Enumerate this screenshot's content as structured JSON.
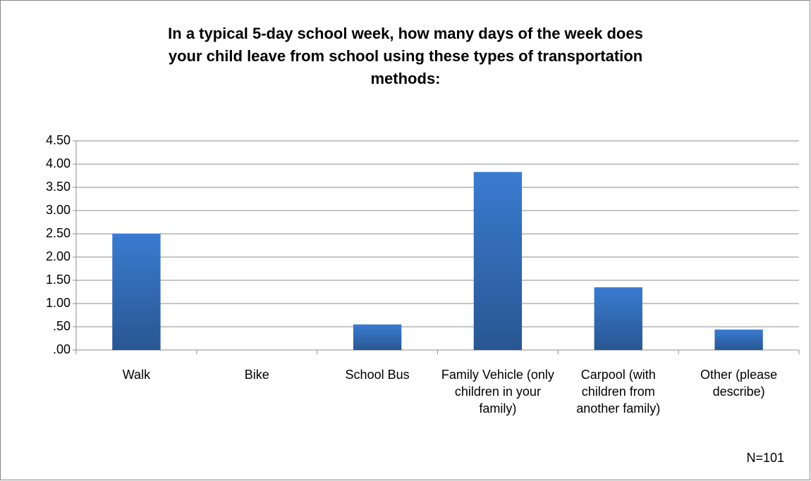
{
  "chart_data": {
    "type": "bar",
    "title": "In a typical 5-day school week, how many days of the week does your child leave from school using these types of transportation methods:",
    "categories": [
      "Walk",
      "Bike",
      "School Bus",
      "Family Vehicle (only children in your family)",
      "Carpool (with children from another family)",
      "Other (please describe)"
    ],
    "values": [
      2.5,
      0,
      0.55,
      3.83,
      1.35,
      0.44
    ],
    "color": "#3a7bd0",
    "ylim": [
      0,
      4.5
    ],
    "yticks": [
      {
        "value": 0,
        "label": ".00"
      },
      {
        "value": 0.5,
        "label": ".50"
      },
      {
        "value": 1,
        "label": "1.00"
      },
      {
        "value": 1.5,
        "label": "1.50"
      },
      {
        "value": 2,
        "label": "2.00"
      },
      {
        "value": 2.5,
        "label": "2.50"
      },
      {
        "value": 3,
        "label": "3.00"
      },
      {
        "value": 3.5,
        "label": "3.50"
      },
      {
        "value": 4,
        "label": "4.00"
      },
      {
        "value": 4.5,
        "label": "4.50"
      }
    ],
    "grid": true,
    "annotation": "N=101"
  }
}
